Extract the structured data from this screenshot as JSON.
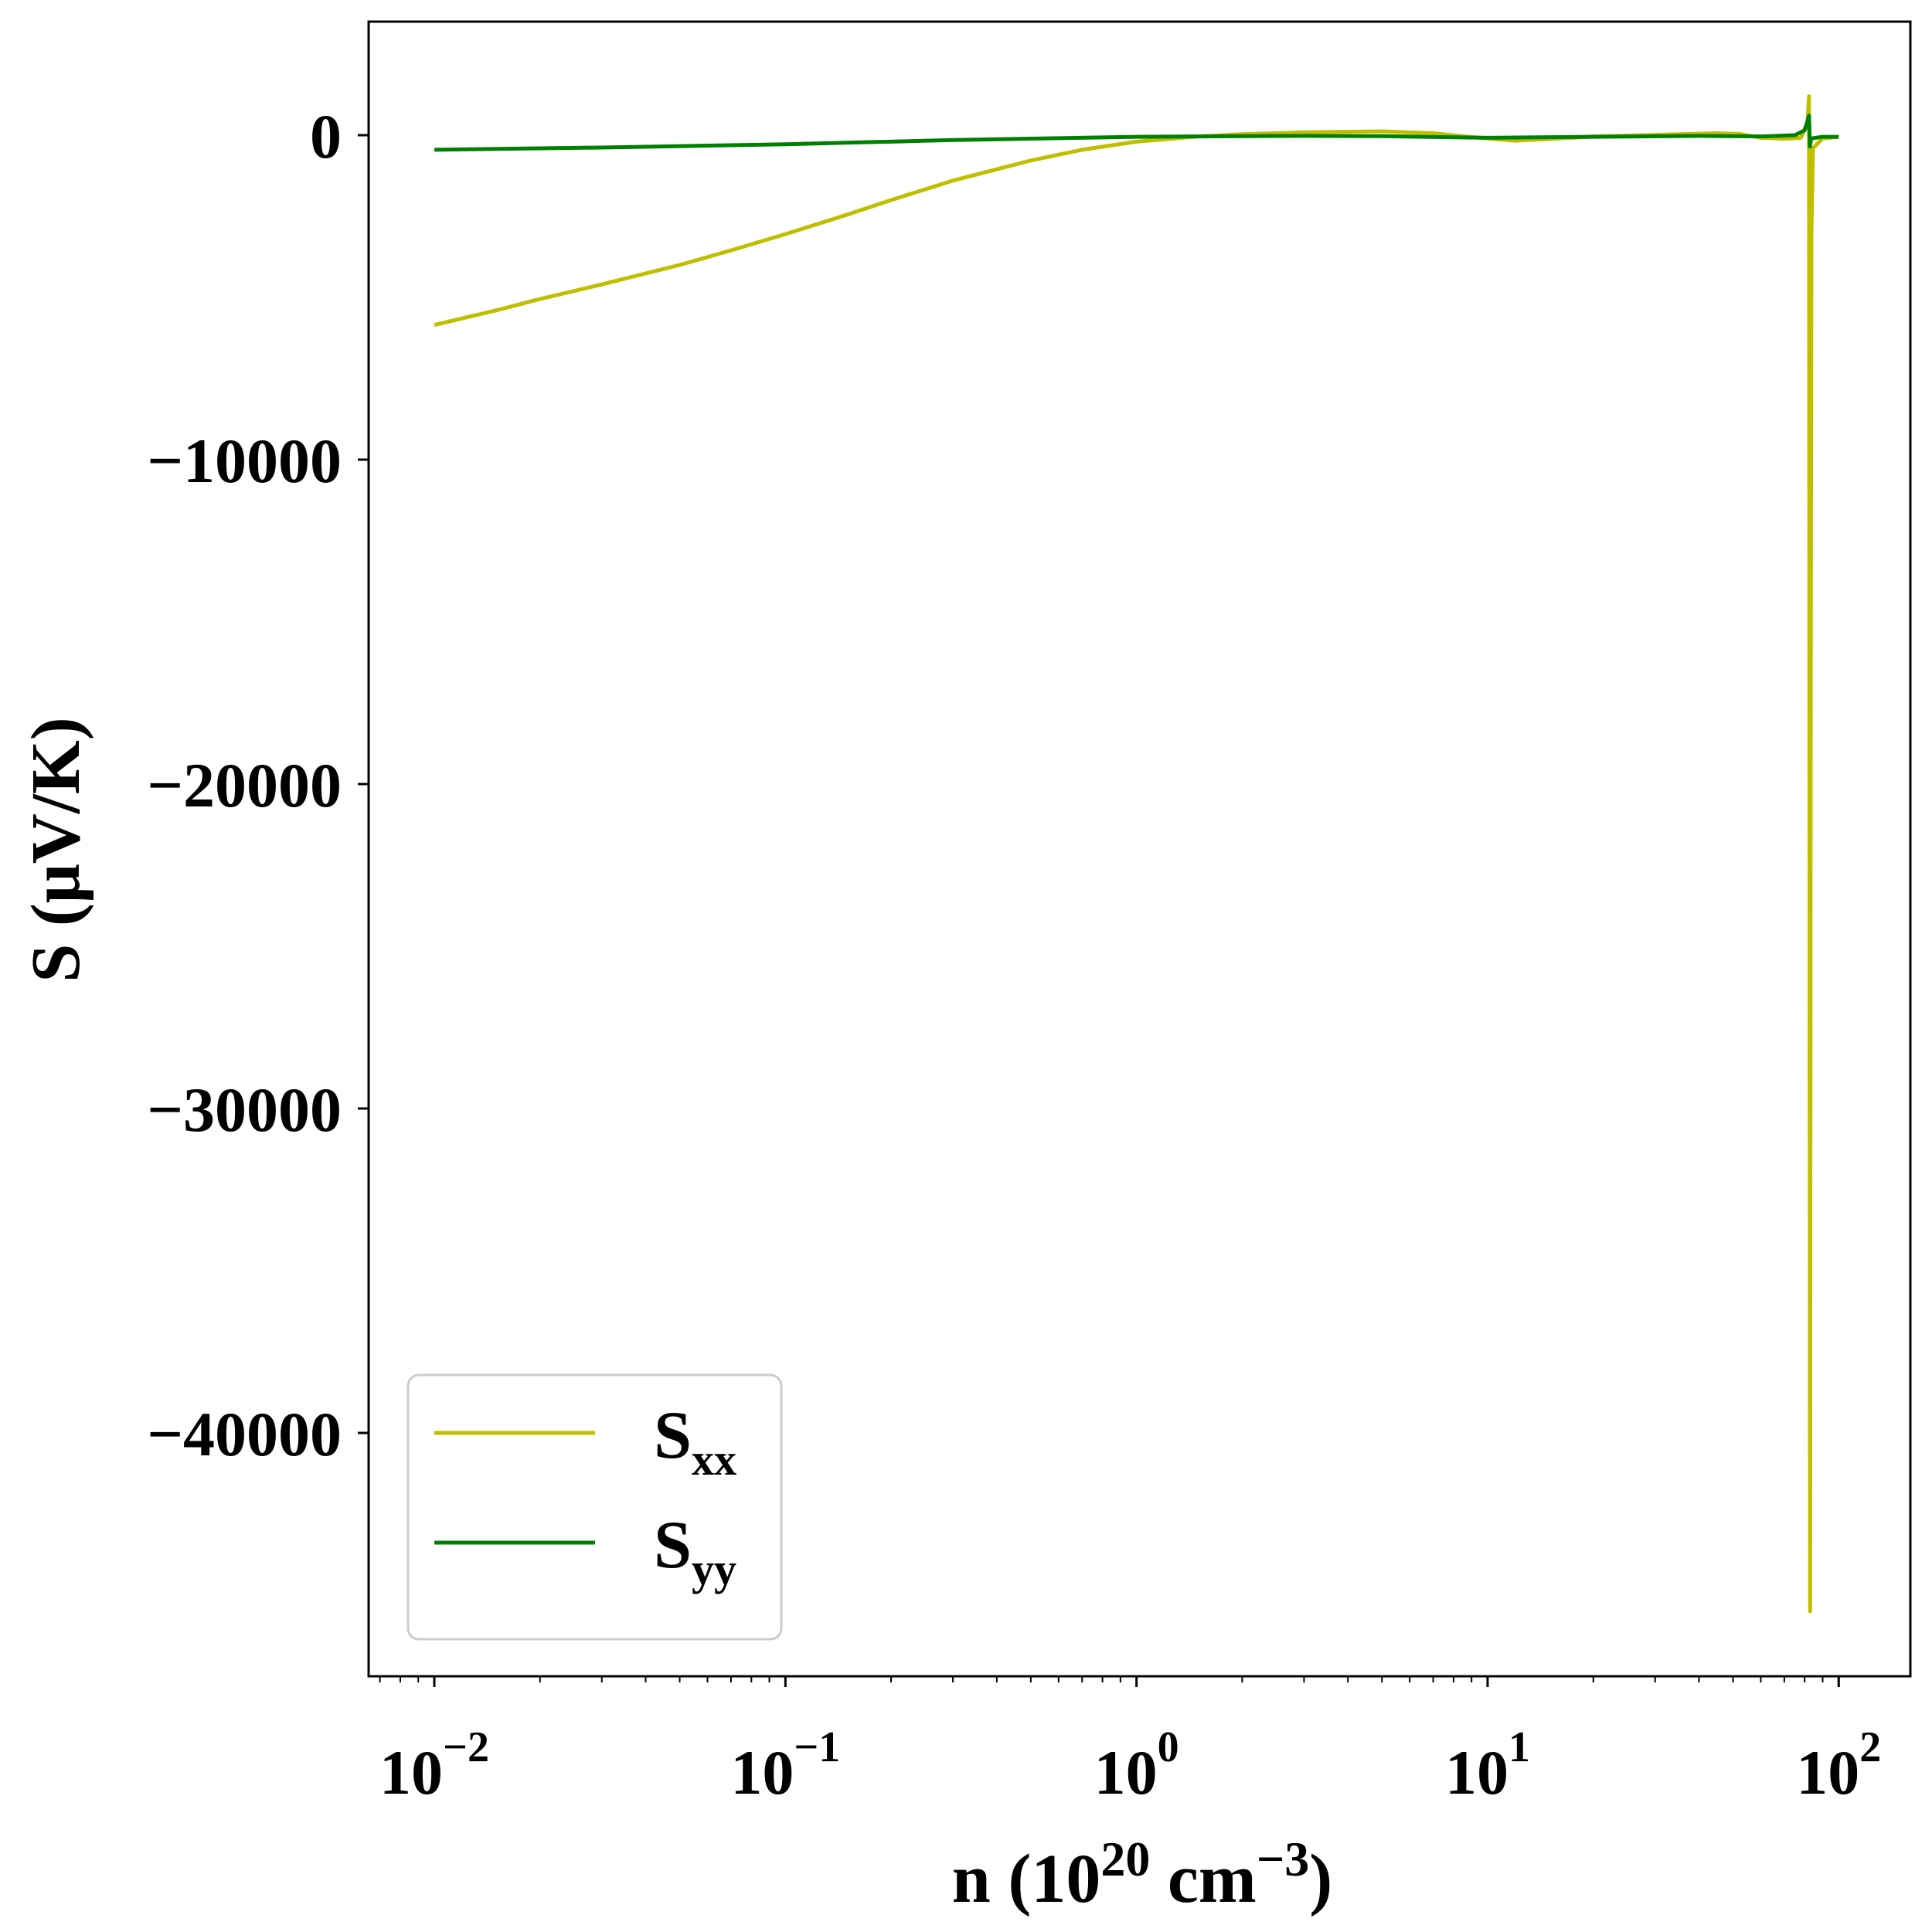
{
  "chart_data": {
    "type": "line",
    "title": "",
    "xlabel": {
      "prefix": "n (10",
      "sup1": "20",
      "middle": " cm",
      "sup2": "−3",
      "suffix": ")"
    },
    "ylabel": "S (μV/K)",
    "xscale": "log",
    "xlim": [
      0.0065,
      160
    ],
    "ylim": [
      -47500,
      3500
    ],
    "x_ticks": [
      {
        "value": 0.01,
        "base": "10",
        "exp": "−2"
      },
      {
        "value": 0.1,
        "base": "10",
        "exp": "−1"
      },
      {
        "value": 1,
        "base": "10",
        "exp": "0"
      },
      {
        "value": 10,
        "base": "10",
        "exp": "1"
      },
      {
        "value": 100,
        "base": "10",
        "exp": "2"
      }
    ],
    "y_ticks": [
      {
        "value": 0,
        "label": "0"
      },
      {
        "value": -10000,
        "label": "−10000"
      },
      {
        "value": -20000,
        "label": "−20000"
      },
      {
        "value": -30000,
        "label": "−30000"
      },
      {
        "value": -40000,
        "label": "−40000"
      }
    ],
    "grid": false,
    "legend_position": "lower-left",
    "series": [
      {
        "name": "S",
        "name_sub": "xx",
        "color": "#bfbf00",
        "points": [
          [
            0.01,
            -5850
          ],
          [
            0.015,
            -5400
          ],
          [
            0.02,
            -5050
          ],
          [
            0.03,
            -4600
          ],
          [
            0.05,
            -4000
          ],
          [
            0.07,
            -3550
          ],
          [
            0.1,
            -3050
          ],
          [
            0.15,
            -2450
          ],
          [
            0.2,
            -2000
          ],
          [
            0.3,
            -1400
          ],
          [
            0.5,
            -780
          ],
          [
            0.7,
            -450
          ],
          [
            1,
            -200
          ],
          [
            1.5,
            -40
          ],
          [
            2,
            30
          ],
          [
            3,
            90
          ],
          [
            5,
            120
          ],
          [
            7,
            60
          ],
          [
            9,
            -60
          ],
          [
            12,
            -170
          ],
          [
            15,
            -120
          ],
          [
            20,
            -40
          ],
          [
            30,
            10
          ],
          [
            45,
            60
          ],
          [
            52,
            40
          ],
          [
            60,
            -80
          ],
          [
            70,
            -110
          ],
          [
            78,
            -80
          ],
          [
            81.5,
            400
          ],
          [
            82.3,
            1200
          ],
          [
            82.6,
            -25000
          ],
          [
            82.9,
            -45500
          ],
          [
            83.2,
            -20000
          ],
          [
            83.6,
            -3000
          ],
          [
            84.5,
            -400
          ],
          [
            90,
            -100
          ],
          [
            100,
            -50
          ]
        ]
      },
      {
        "name": "S",
        "name_sub": "yy",
        "color": "#008000",
        "points": [
          [
            0.01,
            -450
          ],
          [
            0.03,
            -380
          ],
          [
            0.1,
            -280
          ],
          [
            0.3,
            -150
          ],
          [
            1,
            -50
          ],
          [
            3,
            -20
          ],
          [
            5,
            -30
          ],
          [
            10,
            -80
          ],
          [
            20,
            -50
          ],
          [
            40,
            -20
          ],
          [
            60,
            -40
          ],
          [
            75,
            0
          ],
          [
            80,
            150
          ],
          [
            82.3,
            600
          ],
          [
            82.8,
            -350
          ],
          [
            83.5,
            -100
          ],
          [
            90,
            -50
          ],
          [
            100,
            -50
          ]
        ]
      }
    ]
  }
}
